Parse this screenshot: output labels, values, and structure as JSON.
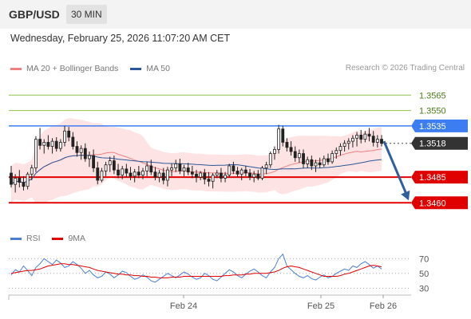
{
  "header": {
    "symbol": "GBP/USD",
    "timeframe": "30 MIN"
  },
  "datetime": "Wednesday, February 25, 2026 11:07:20 AM CET",
  "legend": {
    "ma20": {
      "label": "MA 20 + Bollinger Bands",
      "color": "#f08080"
    },
    "ma50": {
      "label": "MA 50",
      "color": "#2b5797"
    },
    "rsi": {
      "label": "RSI",
      "color": "#4a7fd4"
    },
    "rsi_ma": {
      "label": "9MA",
      "color": "#e00000"
    }
  },
  "credit": "Research © 2026 Trading Central",
  "chart_data": [
    {
      "type": "candlestick",
      "ylim": [
        1.344,
        1.358
      ],
      "x_ticks": [
        "Feb 24",
        "Feb 25",
        "Feb 26"
      ],
      "levels": [
        {
          "value": 1.3565,
          "label": "1.3565",
          "kind": "target",
          "color": "#8bc34a"
        },
        {
          "value": 1.355,
          "label": "1.3550",
          "kind": "target",
          "color": "#8bc34a"
        },
        {
          "value": 1.3535,
          "label": "1.3535",
          "kind": "pivot",
          "color": "#3d7df2"
        },
        {
          "value": 1.3518,
          "label": "1.3518",
          "kind": "last",
          "color": "#333333"
        },
        {
          "value": 1.3485,
          "label": "1.3485",
          "kind": "support",
          "color": "#e00000"
        },
        {
          "value": 1.346,
          "label": "1.3460",
          "kind": "support",
          "color": "#e00000"
        }
      ],
      "forecast": {
        "from": 1.352,
        "to": 1.346,
        "direction": "down"
      },
      "candles": [
        [
          1.3489,
          1.3496,
          1.3475,
          1.3478
        ],
        [
          1.3478,
          1.3488,
          1.347,
          1.3484
        ],
        [
          1.3484,
          1.3492,
          1.3475,
          1.348
        ],
        [
          1.348,
          1.3486,
          1.3472,
          1.3476
        ],
        [
          1.3476,
          1.349,
          1.3473,
          1.3488
        ],
        [
          1.3488,
          1.3497,
          1.3482,
          1.3494
        ],
        [
          1.3494,
          1.3525,
          1.349,
          1.3522
        ],
        [
          1.3522,
          1.3533,
          1.3512,
          1.3516
        ],
        [
          1.3516,
          1.3522,
          1.3508,
          1.3519
        ],
        [
          1.3519,
          1.3526,
          1.3512,
          1.3515
        ],
        [
          1.3515,
          1.3523,
          1.3508,
          1.352
        ],
        [
          1.352,
          1.3524,
          1.351,
          1.3513
        ],
        [
          1.3513,
          1.3522,
          1.351,
          1.3519
        ],
        [
          1.3519,
          1.3535,
          1.3515,
          1.353
        ],
        [
          1.353,
          1.3534,
          1.352,
          1.3524
        ],
        [
          1.3524,
          1.3529,
          1.3512,
          1.3515
        ],
        [
          1.3515,
          1.352,
          1.3505,
          1.3509
        ],
        [
          1.3509,
          1.3516,
          1.3502,
          1.3513
        ],
        [
          1.3513,
          1.3518,
          1.35,
          1.3503
        ],
        [
          1.3503,
          1.351,
          1.3495,
          1.3506
        ],
        [
          1.3506,
          1.3512,
          1.349,
          1.3494
        ],
        [
          1.3494,
          1.35,
          1.3478,
          1.3482
        ],
        [
          1.3482,
          1.3494,
          1.348,
          1.3491
        ],
        [
          1.3491,
          1.35,
          1.3486,
          1.3497
        ],
        [
          1.3497,
          1.3505,
          1.349,
          1.3501
        ],
        [
          1.3501,
          1.3506,
          1.3488,
          1.3492
        ],
        [
          1.3492,
          1.3498,
          1.3484,
          1.3487
        ],
        [
          1.3487,
          1.3496,
          1.3483,
          1.3493
        ],
        [
          1.3493,
          1.3498,
          1.3485,
          1.3489
        ],
        [
          1.3489,
          1.3495,
          1.3482,
          1.3486
        ],
        [
          1.3486,
          1.3493,
          1.348,
          1.349
        ],
        [
          1.349,
          1.3496,
          1.3484,
          1.3487
        ],
        [
          1.3487,
          1.3494,
          1.3483,
          1.3491
        ],
        [
          1.3491,
          1.35,
          1.3486,
          1.3496
        ],
        [
          1.3496,
          1.3502,
          1.3487,
          1.349
        ],
        [
          1.349,
          1.3495,
          1.3482,
          1.3485
        ],
        [
          1.3485,
          1.3492,
          1.348,
          1.3489
        ],
        [
          1.3489,
          1.3494,
          1.3478,
          1.3482
        ],
        [
          1.3482,
          1.3495,
          1.3476,
          1.3492
        ],
        [
          1.3492,
          1.3498,
          1.3486,
          1.3494
        ],
        [
          1.3494,
          1.3502,
          1.349,
          1.3498
        ],
        [
          1.3498,
          1.3503,
          1.3488,
          1.3491
        ],
        [
          1.3491,
          1.3497,
          1.3486,
          1.3494
        ],
        [
          1.3494,
          1.3499,
          1.3487,
          1.349
        ],
        [
          1.349,
          1.3496,
          1.3484,
          1.3488
        ],
        [
          1.3488,
          1.3492,
          1.348,
          1.3485
        ],
        [
          1.3485,
          1.3491,
          1.3482,
          1.3489
        ],
        [
          1.3489,
          1.3493,
          1.3478,
          1.3483
        ],
        [
          1.3483,
          1.349,
          1.3476,
          1.3481
        ],
        [
          1.3481,
          1.3489,
          1.3474,
          1.3487
        ],
        [
          1.3487,
          1.3492,
          1.3484,
          1.3489
        ],
        [
          1.3489,
          1.3494,
          1.348,
          1.3484
        ],
        [
          1.3484,
          1.349,
          1.348,
          1.3487
        ],
        [
          1.3487,
          1.3498,
          1.3485,
          1.3496
        ],
        [
          1.3496,
          1.35,
          1.3488,
          1.3491
        ],
        [
          1.3491,
          1.3495,
          1.3485,
          1.3488
        ],
        [
          1.3488,
          1.3494,
          1.3482,
          1.3492
        ],
        [
          1.3492,
          1.3496,
          1.3486,
          1.3489
        ],
        [
          1.3489,
          1.3493,
          1.3482,
          1.3485
        ],
        [
          1.3485,
          1.3491,
          1.348,
          1.3488
        ],
        [
          1.3488,
          1.3492,
          1.3482,
          1.3484
        ],
        [
          1.3484,
          1.3496,
          1.3482,
          1.3494
        ],
        [
          1.3494,
          1.35,
          1.3488,
          1.3497
        ],
        [
          1.3497,
          1.351,
          1.3494,
          1.3508
        ],
        [
          1.3508,
          1.3515,
          1.3502,
          1.3512
        ],
        [
          1.3512,
          1.3536,
          1.3508,
          1.3532
        ],
        [
          1.3532,
          1.3535,
          1.3515,
          1.3519
        ],
        [
          1.3519,
          1.3523,
          1.351,
          1.3514
        ],
        [
          1.3514,
          1.352,
          1.3506,
          1.351
        ],
        [
          1.351,
          1.3515,
          1.35,
          1.3504
        ],
        [
          1.3504,
          1.3512,
          1.3499,
          1.3508
        ],
        [
          1.3508,
          1.3512,
          1.3494,
          1.3498
        ],
        [
          1.3498,
          1.3505,
          1.3494,
          1.3502
        ],
        [
          1.3502,
          1.3506,
          1.3492,
          1.3496
        ],
        [
          1.3496,
          1.3502,
          1.349,
          1.3499
        ],
        [
          1.3499,
          1.3504,
          1.3494,
          1.3497
        ],
        [
          1.3497,
          1.3506,
          1.3495,
          1.3503
        ],
        [
          1.3503,
          1.3508,
          1.3497,
          1.35
        ],
        [
          1.35,
          1.3511,
          1.3498,
          1.3508
        ],
        [
          1.3508,
          1.3514,
          1.3503,
          1.3511
        ],
        [
          1.3511,
          1.3518,
          1.3506,
          1.3515
        ],
        [
          1.3515,
          1.3521,
          1.351,
          1.3518
        ],
        [
          1.3518,
          1.3523,
          1.3512,
          1.352
        ],
        [
          1.352,
          1.3526,
          1.3514,
          1.3523
        ],
        [
          1.3523,
          1.3529,
          1.3515,
          1.3526
        ],
        [
          1.3526,
          1.3531,
          1.3518,
          1.3522
        ],
        [
          1.3522,
          1.353,
          1.3519,
          1.3527
        ],
        [
          1.3527,
          1.3533,
          1.352,
          1.3525
        ],
        [
          1.3525,
          1.353,
          1.3515,
          1.3519
        ],
        [
          1.3519,
          1.3526,
          1.3514,
          1.3522
        ],
        [
          1.3522,
          1.3526,
          1.3515,
          1.3518
        ]
      ]
    },
    {
      "type": "line",
      "name": "RSI",
      "y_ticks": [
        70,
        50,
        30
      ],
      "ylim": [
        25,
        80
      ],
      "series": [
        {
          "name": "RSI",
          "values": [
            48,
            55,
            52,
            60,
            54,
            47,
            58,
            63,
            70,
            66,
            62,
            68,
            64,
            58,
            60,
            66,
            62,
            57,
            50,
            54,
            48,
            44,
            46,
            52,
            49,
            44,
            48,
            53,
            51,
            46,
            42,
            44,
            48,
            45,
            40,
            38,
            42,
            46,
            50,
            47,
            44,
            48,
            52,
            49,
            45,
            42,
            44,
            50,
            47,
            42,
            40,
            45,
            50,
            55,
            52,
            47,
            44,
            49,
            53,
            56,
            52,
            47,
            44,
            52,
            58,
            70,
            76,
            60,
            55,
            50,
            46,
            44,
            47,
            43,
            41,
            45,
            48,
            44,
            46,
            50,
            53,
            56,
            54,
            60,
            58,
            63,
            66,
            62,
            57,
            60,
            56
          ]
        },
        {
          "name": "9MA",
          "values": [
            50,
            51,
            52,
            53,
            54,
            54,
            55,
            56,
            58,
            60,
            61,
            62,
            63,
            63,
            62,
            62,
            61,
            60,
            59,
            58,
            56,
            54,
            53,
            52,
            51,
            50,
            49,
            49,
            48,
            48,
            47,
            47,
            46,
            46,
            45,
            45,
            44,
            44,
            44,
            45,
            45,
            45,
            46,
            46,
            46,
            46,
            46,
            46,
            46,
            46,
            46,
            46,
            47,
            47,
            48,
            48,
            48,
            49,
            49,
            50,
            50,
            50,
            50,
            51,
            52,
            54,
            57,
            59,
            60,
            59,
            58,
            56,
            54,
            52,
            50,
            48,
            46,
            46,
            46,
            46,
            47,
            49,
            50,
            52,
            54,
            56,
            58,
            60,
            61,
            60,
            59
          ]
        }
      ]
    }
  ]
}
